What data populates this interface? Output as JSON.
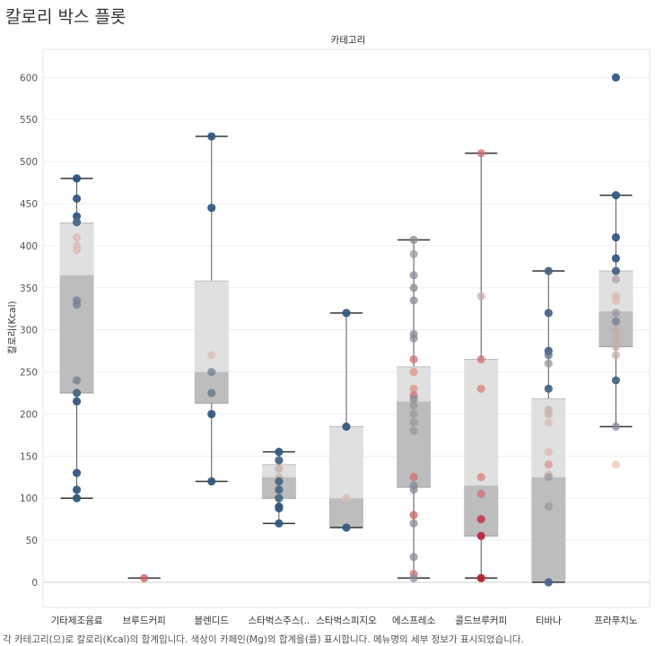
{
  "title": "칼로리 박스 플롯",
  "caption": "각 카테고리(으)로 칼로리(Kcal)의 합계입니다. 색상이 카페인(Mg)의 합계을(를) 표시합니다. 메뉴명의 세부 정보가 표시되었습니다.",
  "chart_data": {
    "type": "box",
    "title": "칼로리 박스 플롯",
    "column_header": "카테고리",
    "ylabel": "칼로리(Kcal)",
    "ylim": [
      -35,
      640
    ],
    "yticks": [
      0,
      50,
      100,
      150,
      200,
      250,
      300,
      350,
      400,
      450,
      500,
      550,
      600
    ],
    "grid": true,
    "color_scale": {
      "low": "#b2182b",
      "mid": "#f1c5b6",
      "high": "#1f4e79",
      "meaning": "카페인(Mg)의 합계"
    },
    "categories": [
      {
        "name": "기타제조음료",
        "box": {
          "min": 100,
          "q1": 225,
          "median": 365,
          "q3": 427,
          "max": 480
        },
        "points": [
          {
            "y": 480,
            "c": 0.98
          },
          {
            "y": 456,
            "c": 0.95
          },
          {
            "y": 435,
            "c": 0.95
          },
          {
            "y": 428,
            "c": 0.9
          },
          {
            "y": 410,
            "c": 0.55
          },
          {
            "y": 400,
            "c": 0.55
          },
          {
            "y": 395,
            "c": 0.55
          },
          {
            "y": 335,
            "c": 0.8
          },
          {
            "y": 330,
            "c": 0.8
          },
          {
            "y": 240,
            "c": 0.8
          },
          {
            "y": 225,
            "c": 0.9
          },
          {
            "y": 215,
            "c": 0.95
          },
          {
            "y": 130,
            "c": 0.95
          },
          {
            "y": 110,
            "c": 0.95
          },
          {
            "y": 100,
            "c": 0.95
          }
        ]
      },
      {
        "name": "브루드커피",
        "box": {
          "min": 5,
          "q1": 5,
          "median": 5,
          "q3": 5,
          "max": 5
        },
        "points": [
          {
            "y": 5,
            "c": 0.2
          }
        ]
      },
      {
        "name": "블렌디드",
        "box": {
          "min": 120,
          "q1": 213,
          "median": 250,
          "q3": 358,
          "max": 530
        },
        "points": [
          {
            "y": 530,
            "c": 0.95
          },
          {
            "y": 445,
            "c": 0.95
          },
          {
            "y": 270,
            "c": 0.55
          },
          {
            "y": 250,
            "c": 0.8
          },
          {
            "y": 225,
            "c": 0.85
          },
          {
            "y": 200,
            "c": 0.95
          },
          {
            "y": 120,
            "c": 0.95
          }
        ]
      },
      {
        "name": "스타벅스주스(..",
        "box": {
          "min": 70,
          "q1": 100,
          "median": 125,
          "q3": 140,
          "max": 155
        },
        "points": [
          {
            "y": 155,
            "c": 0.95
          },
          {
            "y": 145,
            "c": 0.9
          },
          {
            "y": 135,
            "c": 0.6
          },
          {
            "y": 125,
            "c": 0.6
          },
          {
            "y": 120,
            "c": 0.9
          },
          {
            "y": 110,
            "c": 0.9
          },
          {
            "y": 100,
            "c": 0.9
          },
          {
            "y": 90,
            "c": 0.95
          },
          {
            "y": 88,
            "c": 0.95
          },
          {
            "y": 70,
            "c": 0.95
          }
        ]
      },
      {
        "name": "스타벅스피지오",
        "box": {
          "min": 65,
          "q1": 65,
          "median": 100,
          "q3": 185,
          "max": 320
        },
        "points": [
          {
            "y": 320,
            "c": 0.95
          },
          {
            "y": 185,
            "c": 0.95
          },
          {
            "y": 100,
            "c": 0.55
          },
          {
            "y": 65,
            "c": 0.95
          }
        ]
      },
      {
        "name": "에스프레소",
        "box": {
          "min": 5,
          "q1": 113,
          "median": 215,
          "q3": 256,
          "max": 407
        },
        "points": [
          {
            "y": 407,
            "c": 0.75
          },
          {
            "y": 390,
            "c": 0.7
          },
          {
            "y": 365,
            "c": 0.75
          },
          {
            "y": 350,
            "c": 0.75
          },
          {
            "y": 335,
            "c": 0.75
          },
          {
            "y": 295,
            "c": 0.75
          },
          {
            "y": 290,
            "c": 0.75
          },
          {
            "y": 265,
            "c": 0.25
          },
          {
            "y": 250,
            "c": 0.35
          },
          {
            "y": 230,
            "c": 0.35
          },
          {
            "y": 222,
            "c": 0.25
          },
          {
            "y": 218,
            "c": 0.75
          },
          {
            "y": 210,
            "c": 0.7
          },
          {
            "y": 200,
            "c": 0.7
          },
          {
            "y": 190,
            "c": 0.7
          },
          {
            "y": 180,
            "c": 0.7
          },
          {
            "y": 125,
            "c": 0.25
          },
          {
            "y": 115,
            "c": 0.75
          },
          {
            "y": 110,
            "c": 0.75
          },
          {
            "y": 80,
            "c": 0.2
          },
          {
            "y": 70,
            "c": 0.75
          },
          {
            "y": 30,
            "c": 0.75
          },
          {
            "y": 10,
            "c": 0.25
          },
          {
            "y": 5,
            "c": 0.75
          }
        ]
      },
      {
        "name": "콜드브루커피",
        "box": {
          "min": 5,
          "q1": 55,
          "median": 115,
          "q3": 265,
          "max": 510
        },
        "points": [
          {
            "y": 510,
            "c": 0.25
          },
          {
            "y": 340,
            "c": 0.6
          },
          {
            "y": 265,
            "c": 0.25
          },
          {
            "y": 230,
            "c": 0.3
          },
          {
            "y": 125,
            "c": 0.3
          },
          {
            "y": 105,
            "c": 0.25
          },
          {
            "y": 75,
            "c": 0.12
          },
          {
            "y": 55,
            "c": 0.05
          },
          {
            "y": 5,
            "c": 0.02
          }
        ]
      },
      {
        "name": "티바나",
        "box": {
          "min": 0,
          "q1": 0,
          "median": 125,
          "q3": 218,
          "max": 370
        },
        "points": [
          {
            "y": 370,
            "c": 0.9
          },
          {
            "y": 320,
            "c": 0.9
          },
          {
            "y": 275,
            "c": 0.9
          },
          {
            "y": 270,
            "c": 0.85
          },
          {
            "y": 260,
            "c": 0.7
          },
          {
            "y": 230,
            "c": 0.9
          },
          {
            "y": 205,
            "c": 0.6
          },
          {
            "y": 200,
            "c": 0.6
          },
          {
            "y": 190,
            "c": 0.55
          },
          {
            "y": 155,
            "c": 0.55
          },
          {
            "y": 140,
            "c": 0.35
          },
          {
            "y": 128,
            "c": 0.55
          },
          {
            "y": 125,
            "c": 0.7
          },
          {
            "y": 90,
            "c": 0.7
          },
          {
            "y": 0,
            "c": 0.9
          }
        ]
      },
      {
        "name": "프라푸치노",
        "box": {
          "min": 185,
          "q1": 280,
          "median": 322,
          "q3": 370,
          "max": 460
        },
        "points": [
          {
            "y": 600,
            "c": 0.95
          },
          {
            "y": 460,
            "c": 0.95
          },
          {
            "y": 410,
            "c": 0.95
          },
          {
            "y": 385,
            "c": 0.95
          },
          {
            "y": 370,
            "c": 0.9
          },
          {
            "y": 360,
            "c": 0.65
          },
          {
            "y": 340,
            "c": 0.55
          },
          {
            "y": 335,
            "c": 0.55
          },
          {
            "y": 320,
            "c": 0.7
          },
          {
            "y": 310,
            "c": 0.8
          },
          {
            "y": 300,
            "c": 0.6
          },
          {
            "y": 290,
            "c": 0.6
          },
          {
            "y": 280,
            "c": 0.6
          },
          {
            "y": 270,
            "c": 0.6
          },
          {
            "y": 240,
            "c": 0.9
          },
          {
            "y": 185,
            "c": 0.75
          },
          {
            "y": 140,
            "c": 0.5
          }
        ]
      }
    ]
  }
}
